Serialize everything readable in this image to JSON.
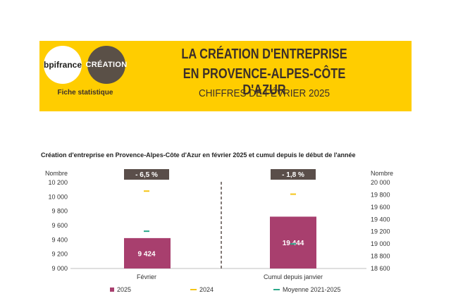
{
  "header": {
    "logo_bpi": "bpifrance",
    "logo_creation": "CRÉATION",
    "fiche": "Fiche statistique",
    "title_line1": "LA CRÉATION D'ENTREPRISE",
    "title_line2": "EN PROVENCE-ALPES-CÔTE D'AZUR",
    "subtitle": "CHIFFRES DE FÉVRIER 2025"
  },
  "colors": {
    "banner": "#FFCD00",
    "bar_2025": "#A83F6E",
    "marker_2024": "#F5C518",
    "marker_moyenne": "#2BA88A",
    "badge": "#5a4e4a"
  },
  "chart_data": {
    "type": "bar",
    "title": "Création d'entreprise en Provence-Alpes-Côte d'Azur en février 2025 et cumul depuis le début de l'année",
    "panels": [
      {
        "category": "Février",
        "ylabel": "Nombre",
        "ylim": [
          9000,
          10200
        ],
        "ticks": [
          "9 000",
          "9 200",
          "9 400",
          "9 600",
          "9 800",
          "10 000",
          "10 200"
        ],
        "value_2025": 9424,
        "label_2025": "9 424",
        "value_2024": 10080,
        "value_moyenne": 9520,
        "variation": "- 6,5 %"
      },
      {
        "category": "Cumul depuis janvier",
        "ylabel": "Nombre",
        "ylim": [
          18600,
          20000
        ],
        "ticks": [
          "18 600",
          "18 800",
          "19 000",
          "19 200",
          "19 400",
          "19 600",
          "19 800",
          "20 000"
        ],
        "value_2025": 19444,
        "label_2025": "19 444",
        "value_2024": 19810,
        "value_moyenne": 19000,
        "variation": "- 1,8 %"
      }
    ],
    "series": [
      {
        "name": "2025"
      },
      {
        "name": "2024"
      },
      {
        "name": "Moyenne 2021-2025"
      }
    ]
  }
}
